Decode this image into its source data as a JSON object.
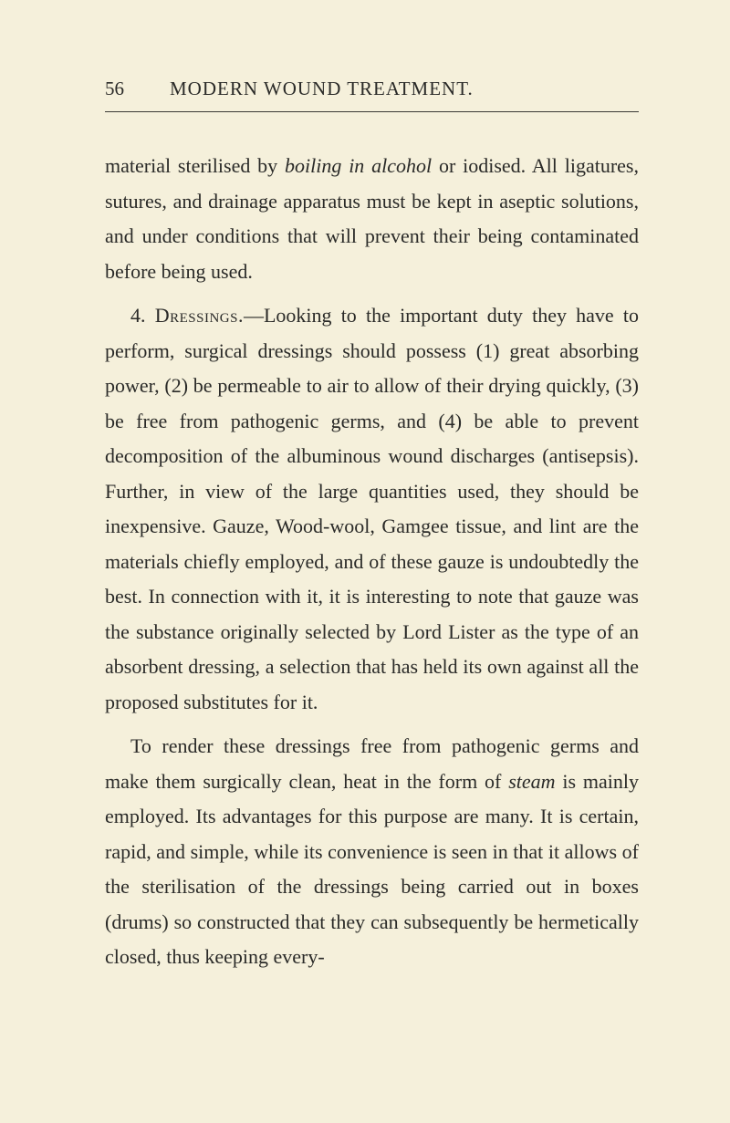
{
  "page": {
    "number": "56",
    "runningTitle": "MODERN WOUND TREATMENT.",
    "backgroundColor": "#f5f0db",
    "textColor": "#2a2a28",
    "dividerColor": "#3a3a35",
    "fontSize": 22,
    "lineHeight": 1.75
  },
  "paragraphs": {
    "p1": {
      "text": "material sterilised by ",
      "italic1": "boiling in alcohol",
      "text2": " or iodised. All ligatures, sutures, and drainage apparatus must be kept in aseptic solutions, and under conditions that will prevent their being contaminated before being used."
    },
    "p2": {
      "prefix": "4. ",
      "smallcaps": "Dressings.",
      "text1": "—Looking to the important duty they have to perform, surgical dressings should possess (1) great absorbing power, (2) be permeable to air to allow of their drying quickly, (3) be free from pathogenic germs, and (4) be able to prevent decomposition of the albuminous wound discharges (antisepsis). Further, in view of the large quantities used, they should be inexpensive. Gauze, Wood-wool, Gamgee tissue, and lint are the materials chiefly employed, and of these gauze is undoubtedly the best. In connection with it, it is interesting to note that gauze was the substance originally selected by Lord Lister as the type of an absorbent dressing, a selection that has held its own against all the proposed substitutes for it."
    },
    "p3": {
      "text1": "To render these dressings free from pathogenic germs and make them surgically clean, heat in the form of ",
      "italic1": "steam",
      "text2": " is mainly employed. Its advantages for this purpose are many. It is certain, rapid, and simple, while its convenience is seen in that it allows of the sterilisation of the dressings being carried out in boxes (drums) so constructed that they can subsequently be hermetically closed, thus keeping every-"
    }
  }
}
